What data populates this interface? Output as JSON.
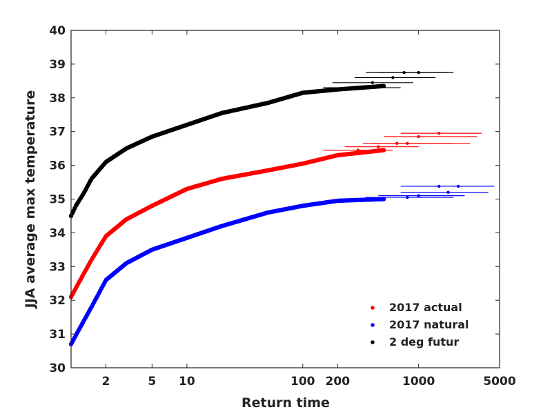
{
  "chart_data": {
    "type": "scatter",
    "title": "",
    "xlabel": "Return time",
    "ylabel": "JJA average max temperature",
    "x_scale": "log",
    "xlim": [
      1,
      5000
    ],
    "ylim": [
      30,
      40
    ],
    "x_ticks": [
      2,
      5,
      10,
      100,
      200,
      1000,
      5000
    ],
    "x_tick_labels": [
      "2",
      "5",
      "10",
      "100",
      "200",
      "1000",
      "5000"
    ],
    "y_ticks": [
      30,
      31,
      32,
      33,
      34,
      35,
      36,
      37,
      38,
      39,
      40
    ],
    "y_tick_labels": [
      "30",
      "31",
      "32",
      "33",
      "34",
      "35",
      "36",
      "37",
      "38",
      "39",
      "40"
    ],
    "grid": false,
    "legend_position": "bottom-right",
    "series": [
      {
        "name": "2017 actual",
        "color": "#ff0000",
        "curve": {
          "x": [
            1,
            1.2,
            1.5,
            2,
            3,
            5,
            10,
            20,
            50,
            100,
            200,
            500
          ],
          "y": [
            32.1,
            32.6,
            33.2,
            33.9,
            34.4,
            34.8,
            35.3,
            35.6,
            35.85,
            36.05,
            36.3,
            36.45
          ]
        },
        "tail_points": [
          {
            "x": 300,
            "y": 36.45,
            "xerr": [
              150,
              600
            ]
          },
          {
            "x": 450,
            "y": 36.55,
            "xerr": [
              230,
              1000
            ]
          },
          {
            "x": 650,
            "y": 36.65,
            "xerr": [
              330,
              2000
            ]
          },
          {
            "x": 800,
            "y": 36.65,
            "xerr": [
              400,
              2800
            ]
          },
          {
            "x": 1000,
            "y": 36.85,
            "xerr": [
              500,
              3200
            ]
          },
          {
            "x": 1500,
            "y": 36.95,
            "xerr": [
              700,
              3500
            ]
          }
        ]
      },
      {
        "name": "2017 natural",
        "color": "#0000ff",
        "curve": {
          "x": [
            1,
            1.2,
            1.5,
            2,
            3,
            5,
            10,
            20,
            50,
            100,
            200,
            500
          ],
          "y": [
            30.7,
            31.2,
            31.8,
            32.6,
            33.1,
            33.5,
            33.85,
            34.2,
            34.6,
            34.8,
            34.95,
            35.0
          ]
        },
        "tail_points": [
          {
            "x": 800,
            "y": 35.05,
            "xerr": [
              350,
              2000
            ]
          },
          {
            "x": 1000,
            "y": 35.1,
            "xerr": [
              450,
              2500
            ]
          },
          {
            "x": 1800,
            "y": 35.2,
            "xerr": [
              700,
              4000
            ]
          },
          {
            "x": 1500,
            "y": 35.38,
            "xerr": [
              700,
              4500
            ]
          },
          {
            "x": 2200,
            "y": 35.38,
            "xerr": [
              800,
              4500
            ]
          }
        ]
      },
      {
        "name": "2 deg futur",
        "color": "#000000",
        "curve": {
          "x": [
            1,
            1.1,
            1.3,
            1.5,
            2,
            3,
            5,
            10,
            20,
            50,
            100,
            200,
            500
          ],
          "y": [
            34.5,
            34.8,
            35.2,
            35.6,
            36.1,
            36.5,
            36.85,
            37.2,
            37.55,
            37.85,
            38.15,
            38.25,
            38.35
          ]
        },
        "tail_points": [
          {
            "x": 350,
            "y": 38.3,
            "xerr": [
              150,
              700
            ]
          },
          {
            "x": 400,
            "y": 38.45,
            "xerr": [
              180,
              900
            ]
          },
          {
            "x": 600,
            "y": 38.6,
            "xerr": [
              280,
              1400
            ]
          },
          {
            "x": 750,
            "y": 38.75,
            "xerr": [
              350,
              1800
            ]
          },
          {
            "x": 1000,
            "y": 38.75,
            "xerr": [
              450,
              2000
            ]
          }
        ]
      }
    ]
  }
}
